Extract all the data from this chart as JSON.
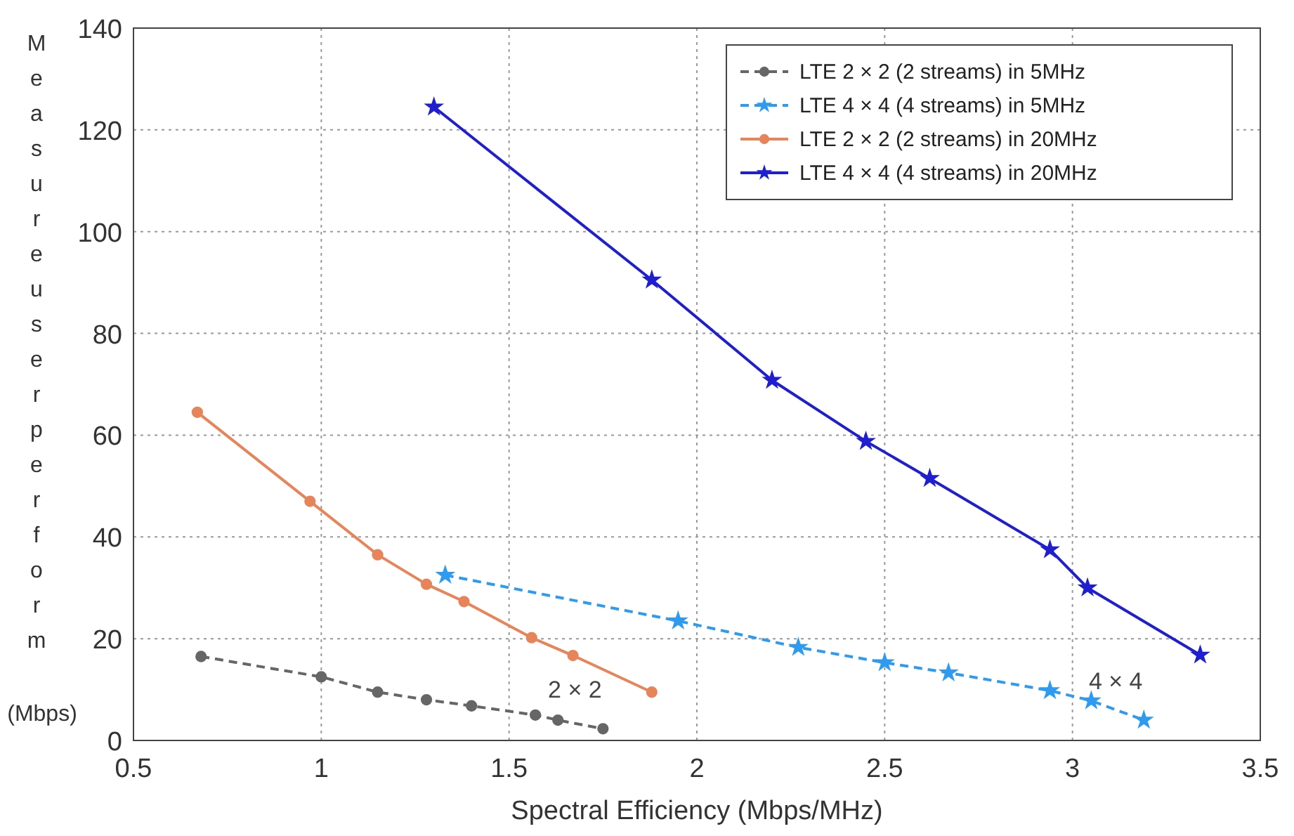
{
  "chart_data": {
    "type": "line",
    "xlabel": "Spectral Efficiency (Mbps/MHz)",
    "ylabel": "Measure user perform (Mbps)",
    "xlim": [
      0.5,
      3.5
    ],
    "xticks": [
      0.5,
      1,
      1.5,
      2,
      2.5,
      3,
      3.5
    ],
    "ylim": [
      0,
      140
    ],
    "yticks": [
      0,
      20,
      40,
      60,
      80,
      100,
      120,
      140
    ],
    "grid": true,
    "legend": "top right",
    "series": [
      {
        "name": "LTE 2 × 2 (2 streams) in 5MHz",
        "color": "#666666",
        "line_style": "dashed",
        "marker": "circle",
        "x": [
          0.68,
          1.0,
          1.15,
          1.28,
          1.4,
          1.57,
          1.63,
          1.75
        ],
        "values": [
          16.5,
          12.5,
          9.5,
          8,
          6.8,
          5,
          4,
          2.3
        ]
      },
      {
        "name": "LTE 4 × 4 (4 streams) in 5MHz",
        "color": "#2e9bf0",
        "line_style": "dashed",
        "marker": "star",
        "x": [
          1.33,
          1.95,
          2.27,
          2.5,
          2.67,
          2.94,
          3.05,
          3.19
        ],
        "values": [
          32.5,
          23.5,
          18.3,
          15.3,
          13.3,
          9.8,
          7.8,
          4
        ]
      },
      {
        "name": "LTE 2 × 2 (2 streams) in 20MHz",
        "color": "#e8845a",
        "line_style": "solid",
        "marker": "circle",
        "x": [
          0.67,
          0.97,
          1.15,
          1.28,
          1.38,
          1.56,
          1.67,
          1.88
        ],
        "values": [
          64.5,
          47,
          36.5,
          30.7,
          27.3,
          20.2,
          16.7,
          9.5
        ]
      },
      {
        "name": "LTE 4 × 4 (4 streams) in 20MHz",
        "color": "#1f1fd0",
        "line_style": "solid",
        "marker": "star",
        "x": [
          1.3,
          1.88,
          2.2,
          2.45,
          2.62,
          2.94,
          3.04,
          3.34
        ],
        "values": [
          124.5,
          90.5,
          70.8,
          58.8,
          51.5,
          37.5,
          30,
          16.8
        ]
      }
    ],
    "annotations": [
      "2 × 2",
      "4 × 4"
    ]
  }
}
